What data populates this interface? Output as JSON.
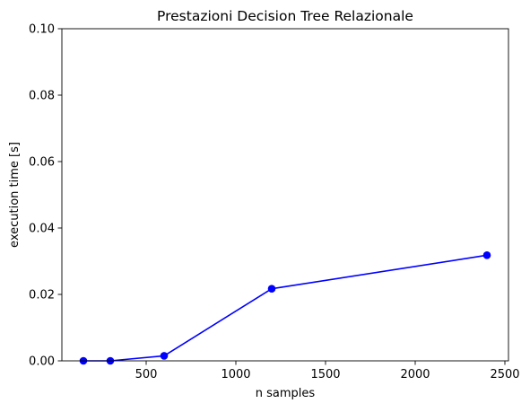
{
  "chart_data": {
    "type": "line",
    "title": "Prestazioni Decision Tree Relazionale",
    "xlabel": "n samples",
    "ylabel": "execution time [s]",
    "xlim": [
      30,
      2520
    ],
    "ylim": [
      0,
      0.1
    ],
    "xticks": [
      500,
      1000,
      1500,
      2000,
      2500
    ],
    "yticks": [
      0.0,
      0.02,
      0.04,
      0.06,
      0.08,
      0.1
    ],
    "xtick_labels": [
      "500",
      "1000",
      "1500",
      "2000",
      "2500"
    ],
    "ytick_labels": [
      "0.00",
      "0.02",
      "0.04",
      "0.06",
      "0.08",
      "0.10"
    ],
    "grid": false,
    "series": [
      {
        "color": "#0000ff",
        "marker": "circle",
        "x": [
          150,
          300,
          600,
          1200,
          2400
        ],
        "y": [
          0.0,
          0.0,
          0.0015,
          0.0217,
          0.0318
        ]
      }
    ]
  }
}
